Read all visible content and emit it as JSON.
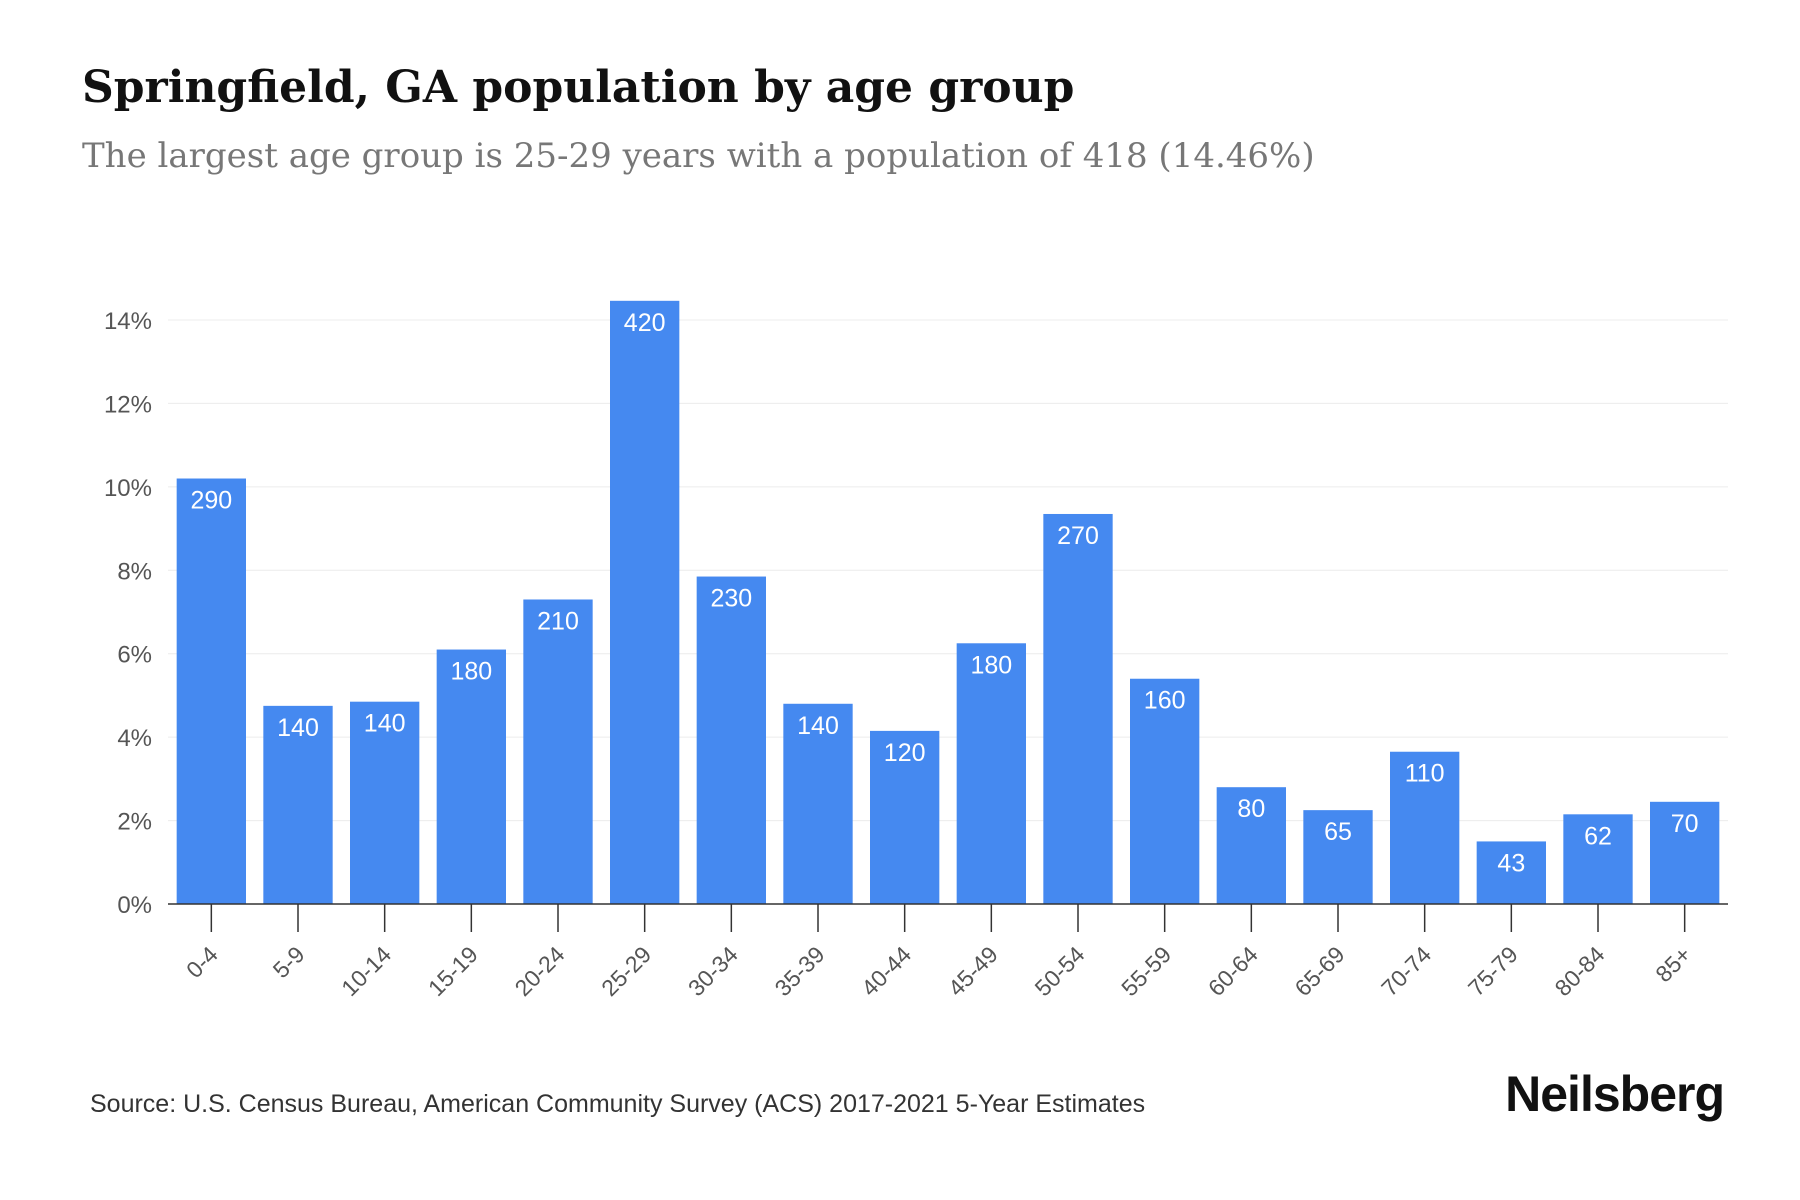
{
  "title": "Springfield, GA population by age group",
  "subtitle": "The largest age group is 25-29 years with a population of 418 (14.46%)",
  "source": "Source: U.S. Census Bureau, American Community Survey (ACS) 2017-2021 5-Year Estimates",
  "brand": "Neilsberg",
  "colors": {
    "bar": "#4589f0",
    "grid": "#ececec",
    "axis": "#333333",
    "tick_label": "#555555",
    "bar_label": "#ffffff"
  },
  "chart_data": {
    "type": "bar",
    "categories": [
      "0-4",
      "5-9",
      "10-14",
      "15-19",
      "20-24",
      "25-29",
      "30-34",
      "35-39",
      "40-44",
      "45-49",
      "50-54",
      "55-59",
      "60-64",
      "65-69",
      "70-74",
      "75-79",
      "80-84",
      "85+"
    ],
    "values": [
      10.2,
      4.75,
      4.85,
      6.1,
      7.3,
      14.46,
      7.85,
      4.8,
      4.15,
      6.25,
      9.35,
      5.4,
      2.8,
      2.25,
      3.65,
      1.5,
      2.15,
      2.45
    ],
    "data_labels": [
      "290",
      "140",
      "140",
      "180",
      "210",
      "420",
      "230",
      "140",
      "120",
      "180",
      "270",
      "160",
      "80",
      "65",
      "110",
      "43",
      "62",
      "70"
    ],
    "y_ticks": [
      "0%",
      "2%",
      "4%",
      "6%",
      "8%",
      "10%",
      "12%",
      "14%"
    ],
    "ylim": [
      0,
      14
    ],
    "grid": true,
    "xlabel": "",
    "ylabel": ""
  }
}
